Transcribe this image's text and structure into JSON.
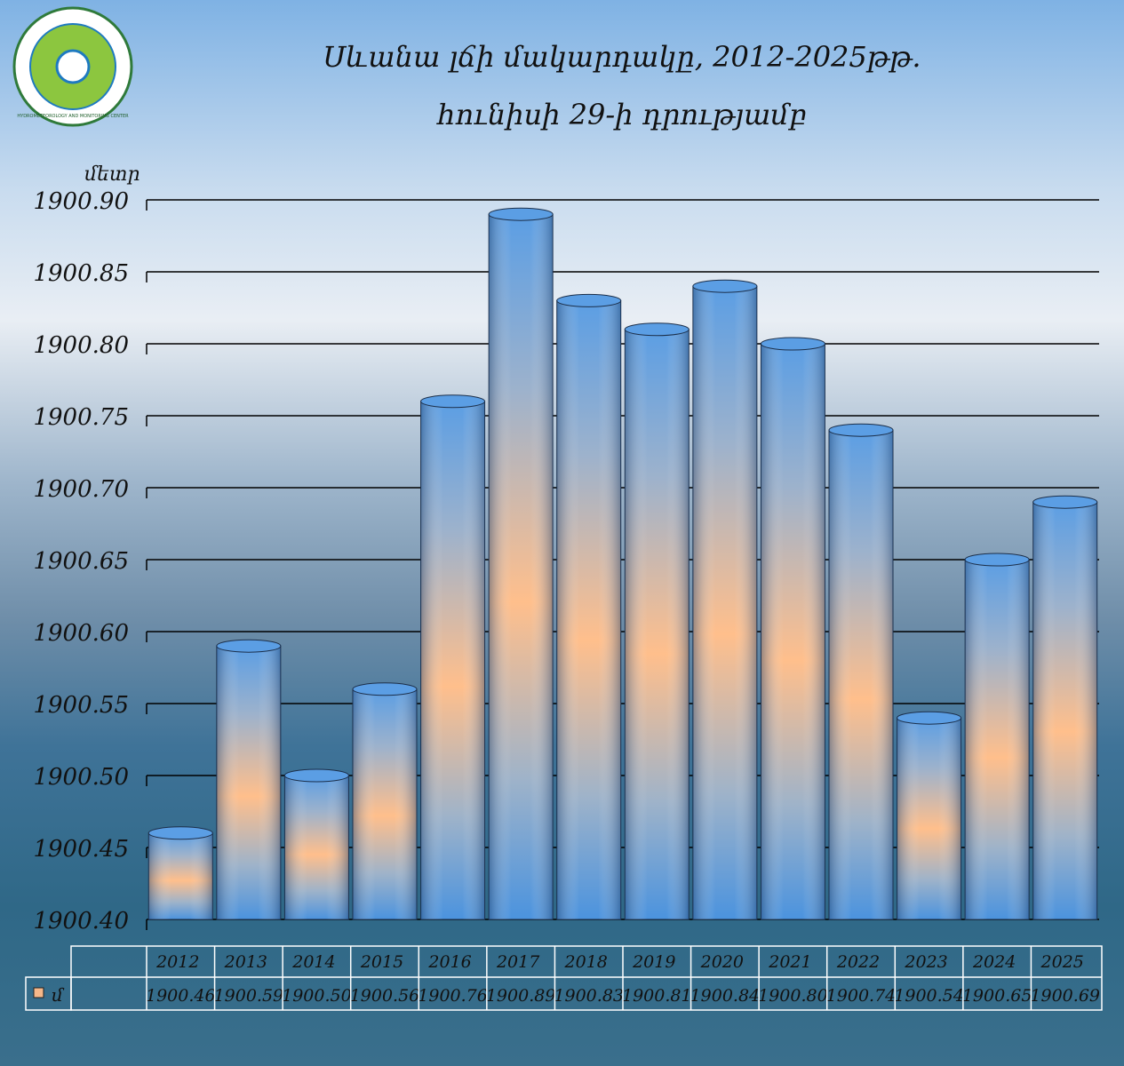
{
  "chart_data": {
    "type": "bar",
    "title": "Սևանա լճի մակարդակը, 2012-2025թթ.",
    "subtitle": "հունիսի 29-ի դրությամբ",
    "y_label": "մետր",
    "logo": "HYDROMETEOROLOGY AND MONITORING CENTER",
    "categories": [
      "2012",
      "2013",
      "2014",
      "2015",
      "2016",
      "2017",
      "2018",
      "2019",
      "2020",
      "2021",
      "2022",
      "2023",
      "2024",
      "2025"
    ],
    "series": [
      {
        "name": "մ",
        "color": "#f6b88a",
        "values": [
          1900.46,
          1900.59,
          1900.5,
          1900.56,
          1900.76,
          1900.89,
          1900.83,
          1900.81,
          1900.84,
          1900.8,
          1900.74,
          1900.54,
          1900.65,
          1900.69
        ],
        "value_labels": [
          "1900.46",
          "1900.59",
          "1900.50",
          "1900.56",
          "1900.76",
          "1900.89",
          "1900.83",
          "1900.81",
          "1900.84",
          "1900.80",
          "1900.74",
          "1900.54",
          "1900.65",
          "1900.69"
        ]
      }
    ],
    "ylim": [
      1900.4,
      1900.9
    ],
    "yticks": [
      {
        "value": 1900.4,
        "label": "1900.40"
      },
      {
        "value": 1900.45,
        "label": "1900.45"
      },
      {
        "value": 1900.5,
        "label": "1900.50"
      },
      {
        "value": 1900.55,
        "label": "1900.55"
      },
      {
        "value": 1900.6,
        "label": "1900.60"
      },
      {
        "value": 1900.65,
        "label": "1900.65"
      },
      {
        "value": 1900.7,
        "label": "1900.70"
      },
      {
        "value": 1900.75,
        "label": "1900.75"
      },
      {
        "value": 1900.8,
        "label": "1900.80"
      },
      {
        "value": 1900.85,
        "label": "1900.85"
      },
      {
        "value": 1900.9,
        "label": "1900.90"
      }
    ],
    "grid": true
  }
}
